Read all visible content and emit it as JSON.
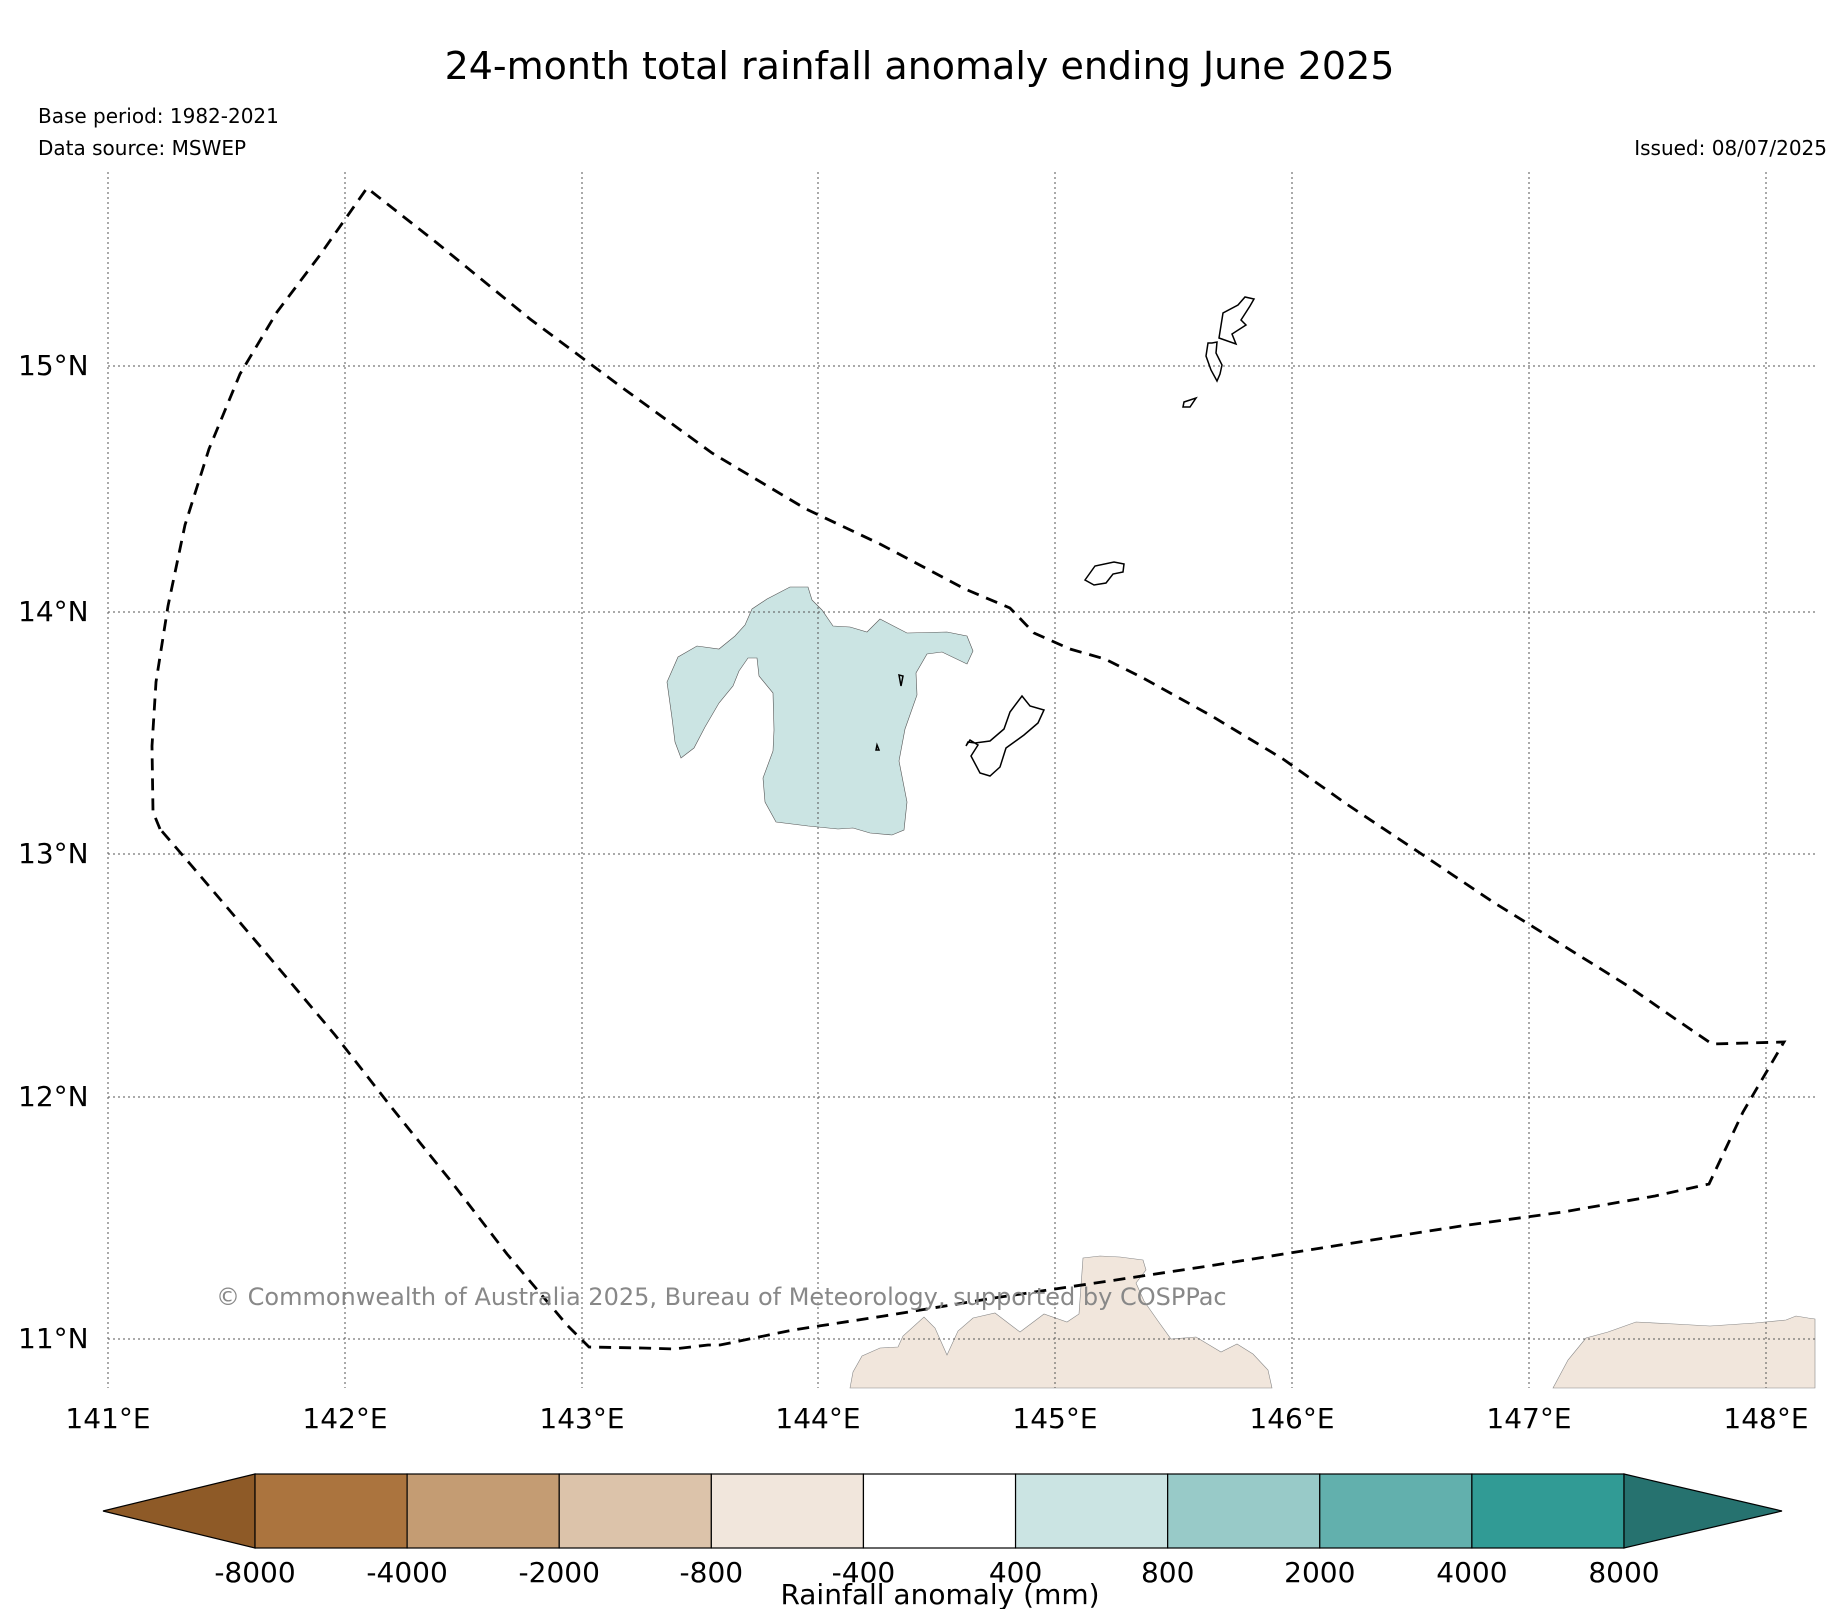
{
  "title": "24-month total rainfall anomaly ending June 2025",
  "base_period": "Base period: 1982-2021",
  "data_source": "Data source: MSWEP",
  "issued": "Issued: 08/07/2025",
  "copyright": "© Commonwealth of Australia 2025, Bureau of Meteorology, supported by COSPPac",
  "map": {
    "lon_ticks": [
      "141°E",
      "142°E",
      "143°E",
      "144°E",
      "145°E",
      "146°E",
      "147°E",
      "148°E"
    ],
    "lat_ticks": [
      "15°N",
      "14°N",
      "13°N",
      "12°N",
      "11°N"
    ],
    "lon_range": [
      140.9,
      148.2
    ],
    "lat_range": [
      10.8,
      15.8
    ],
    "boundary_style": "dashed",
    "grid": "dotted"
  },
  "colorbar": {
    "label": "Rainfall anomaly (mm)",
    "tick_labels": [
      "-8000",
      "-4000",
      "-2000",
      "-800",
      "-400",
      "400",
      "800",
      "2000",
      "4000",
      "8000"
    ],
    "colors": [
      "#8e5a27",
      "#ab743e",
      "#c49c73",
      "#dcc3aa",
      "#f1e6dc",
      "#ffffff",
      "#cbe4e3",
      "#98cac8",
      "#62b0ad",
      "#319b95",
      "#26726f"
    ]
  },
  "regions": [
    {
      "name": "positive anomaly 400-800 mm",
      "color": "#cbe4e3"
    },
    {
      "name": "negative anomaly -800 to -400 mm",
      "color": "#f1e6dc"
    }
  ]
}
